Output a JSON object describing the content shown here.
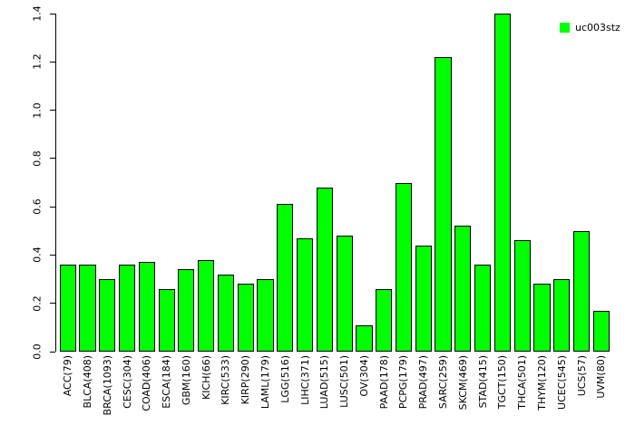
{
  "figure": {
    "background": "#ffffff",
    "legend": {
      "label": "uc003stz",
      "swatch_color": "#00ff00",
      "position": "top-right"
    }
  },
  "chart_data": {
    "type": "bar",
    "title": "",
    "xlabel": "",
    "ylabel": "",
    "series_name": "uc003stz",
    "categories": [
      "ACC(79)",
      "BLCA(408)",
      "BRCA(1093)",
      "CESC(304)",
      "COAD(406)",
      "ESCA(184)",
      "GBM(160)",
      "KICH(66)",
      "KIRC(533)",
      "KIRP(290)",
      "LAML(179)",
      "LGG(516)",
      "LIHC(371)",
      "LUAD(515)",
      "LUSC(501)",
      "OV(304)",
      "PAAD(178)",
      "PCPG(179)",
      "PRAD(497)",
      "SARC(259)",
      "SKCM(469)",
      "STAD(415)",
      "TGCT(150)",
      "THCA(501)",
      "THYM(120)",
      "UCEC(545)",
      "UCS(57)",
      "UVM(80)"
    ],
    "values": [
      0.36,
      0.36,
      0.3,
      0.36,
      0.37,
      0.26,
      0.34,
      0.38,
      0.32,
      0.28,
      0.3,
      0.61,
      0.47,
      0.68,
      0.48,
      0.11,
      0.26,
      0.7,
      0.44,
      1.22,
      0.52,
      0.36,
      1.4,
      0.46,
      0.28,
      0.3,
      0.5,
      0.17
    ],
    "bar_color": "#00ff00",
    "bar_border_color": "#000000",
    "ylim": [
      0,
      1.4
    ],
    "yticks": [
      0.0,
      0.2,
      0.4,
      0.6,
      0.8,
      1.0,
      1.2,
      1.4
    ],
    "ytick_labels": [
      "0.0",
      "0.2",
      "0.4",
      "0.6",
      "0.8",
      "1.0",
      "1.2",
      "1.4"
    ],
    "grid": false,
    "legend_position": "top-right"
  }
}
